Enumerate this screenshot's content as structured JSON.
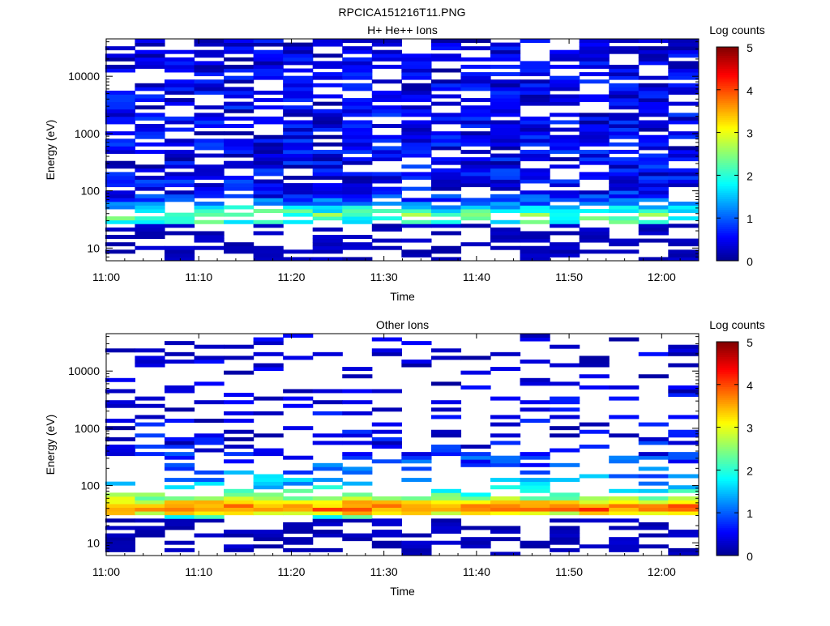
{
  "figure": {
    "title": "RPCICA151216T11.PNG"
  },
  "colors": {
    "axis": "#000000",
    "jet_stops": [
      "#00008f",
      "#0000ff",
      "#00ffff",
      "#ffff00",
      "#ff0000",
      "#800000"
    ]
  },
  "chart_data": [
    {
      "type": "heatmap",
      "title": "H+ He++ Ions",
      "xlabel": "Time",
      "ylabel": "Energy (eV)",
      "yscale": "log",
      "xlim": [
        0,
        64
      ],
      "ylim": [
        6,
        45000
      ],
      "x_ticks": [
        {
          "value": 0,
          "label": "11:00"
        },
        {
          "value": 10,
          "label": "11:10"
        },
        {
          "value": 20,
          "label": "11:20"
        },
        {
          "value": 30,
          "label": "11:30"
        },
        {
          "value": 40,
          "label": "11:40"
        },
        {
          "value": 50,
          "label": "11:50"
        },
        {
          "value": 60,
          "label": "12:00"
        }
      ],
      "y_ticks": [
        {
          "value": 10,
          "label": "10"
        },
        {
          "value": 100,
          "label": "100"
        },
        {
          "value": 1000,
          "label": "1000"
        },
        {
          "value": 10000,
          "label": "10000"
        }
      ],
      "colorbar": {
        "label": "Log counts",
        "range": [
          0,
          5
        ],
        "ticks": [
          "0",
          "1",
          "2",
          "3",
          "4",
          "5"
        ]
      },
      "time_columns": [
        1.5,
        4.7,
        7.9,
        11.1,
        14.3,
        17.5,
        20.7,
        23.9,
        27.1,
        30.3,
        33.5,
        36.7,
        39.9,
        43.1,
        46.3,
        49.5,
        52.7,
        55.9,
        59.1,
        62.3
      ],
      "profile": [
        {
          "e": 30,
          "v": 2.0
        },
        {
          "e": 38,
          "v": 2.3
        },
        {
          "e": 48,
          "v": 1.8
        },
        {
          "e": 60,
          "v": 1.2
        },
        {
          "e": 80,
          "v": 0.7
        },
        {
          "e": 120,
          "v": 0.5
        },
        {
          "e": 1000,
          "v": 0.45
        },
        {
          "e": 10000,
          "v": 0.35
        },
        {
          "e": 40000,
          "v": 0.3
        }
      ],
      "sparsity": 0.24
    },
    {
      "type": "heatmap",
      "title": "Other Ions",
      "xlabel": "Time",
      "ylabel": "Energy (eV)",
      "yscale": "log",
      "xlim": [
        0,
        64
      ],
      "ylim": [
        6,
        45000
      ],
      "x_ticks": [
        {
          "value": 0,
          "label": "11:00"
        },
        {
          "value": 10,
          "label": "11:10"
        },
        {
          "value": 20,
          "label": "11:20"
        },
        {
          "value": 30,
          "label": "11:30"
        },
        {
          "value": 40,
          "label": "11:40"
        },
        {
          "value": 50,
          "label": "11:50"
        },
        {
          "value": 60,
          "label": "12:00"
        }
      ],
      "y_ticks": [
        {
          "value": 10,
          "label": "10"
        },
        {
          "value": 100,
          "label": "100"
        },
        {
          "value": 1000,
          "label": "1000"
        },
        {
          "value": 10000,
          "label": "10000"
        }
      ],
      "colorbar": {
        "label": "Log counts",
        "range": [
          0,
          5
        ],
        "ticks": [
          "0",
          "1",
          "2",
          "3",
          "4",
          "5"
        ]
      },
      "time_columns": [
        1.5,
        4.7,
        7.9,
        11.1,
        14.3,
        17.5,
        20.7,
        23.9,
        27.1,
        30.3,
        33.5,
        36.7,
        39.9,
        43.1,
        46.3,
        49.5,
        52.7,
        55.9,
        59.1,
        62.3
      ],
      "profile": [
        {
          "e": 28,
          "v": 2.0
        },
        {
          "e": 34,
          "v": 3.3
        },
        {
          "e": 40,
          "v": 3.9
        },
        {
          "e": 48,
          "v": 3.4
        },
        {
          "e": 60,
          "v": 2.6
        },
        {
          "e": 80,
          "v": 1.9
        },
        {
          "e": 120,
          "v": 1.4
        },
        {
          "e": 200,
          "v": 1.0
        },
        {
          "e": 400,
          "v": 0.6
        },
        {
          "e": 1000,
          "v": 0.35
        },
        {
          "e": 10000,
          "v": 0.2
        },
        {
          "e": 40000,
          "v": 0.15
        }
      ],
      "sparsity": 0.62
    }
  ]
}
